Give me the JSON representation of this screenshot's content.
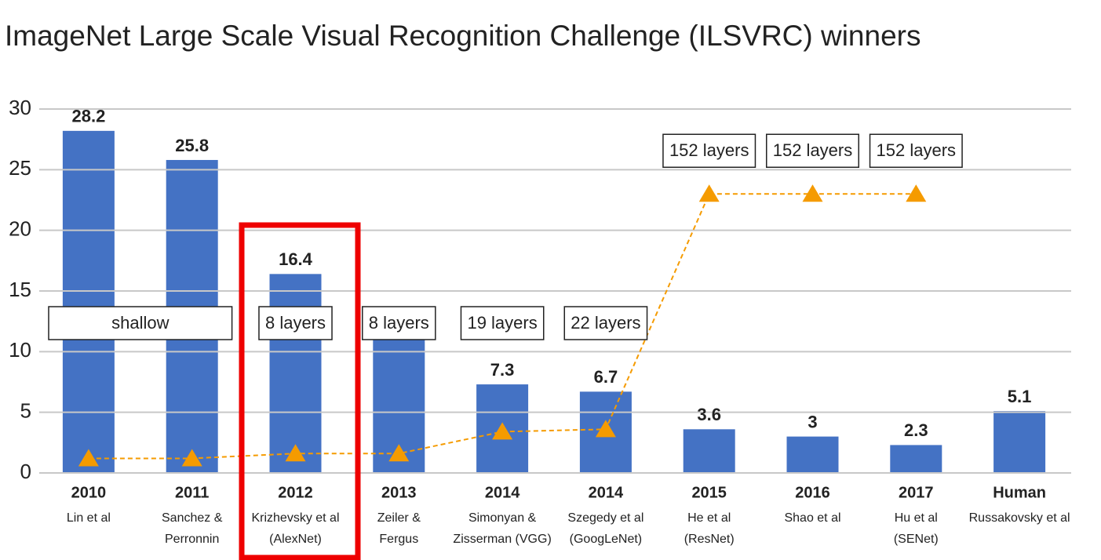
{
  "chart_data": {
    "type": "bar",
    "title": "ImageNet Large Scale Visual Recognition Challenge (ILSVRC) winners",
    "categories": [
      "2010",
      "2011",
      "2012",
      "2013",
      "2014",
      "2014",
      "2015",
      "2016",
      "2017",
      "Human"
    ],
    "sublabels": [
      [
        "Lin et al"
      ],
      [
        "Sanchez &",
        "Perronnin"
      ],
      [
        "Krizhevsky et al",
        "(AlexNet)"
      ],
      [
        "Zeiler &",
        "Fergus"
      ],
      [
        "Simonyan &",
        "Zisserman (VGG)"
      ],
      [
        "Szegedy et al",
        "(GoogLeNet)"
      ],
      [
        "He et al",
        "(ResNet)"
      ],
      [
        "Shao et al"
      ],
      [
        "Hu et al",
        "(SENet)"
      ],
      [
        "Russakovsky et al"
      ]
    ],
    "series": [
      {
        "type": "bar",
        "color": "#4472c4",
        "values": [
          28.2,
          25.8,
          16.4,
          11.7,
          7.3,
          6.7,
          3.6,
          3,
          2.3,
          5.1
        ]
      },
      {
        "type": "line",
        "color": "#f59b00",
        "values": [
          1.2,
          1.2,
          1.6,
          1.6,
          3.4,
          3.6,
          23,
          23,
          23,
          null
        ],
        "labels": [
          "shallow",
          null,
          "8 layers",
          "8 layers",
          "19 layers",
          "22 layers",
          "152 layers",
          "152 layers",
          "152 layers",
          null
        ]
      }
    ],
    "ylim": [
      0,
      30
    ],
    "yticks": [
      0,
      5,
      10,
      15,
      20,
      25,
      30
    ],
    "grid": true
  }
}
